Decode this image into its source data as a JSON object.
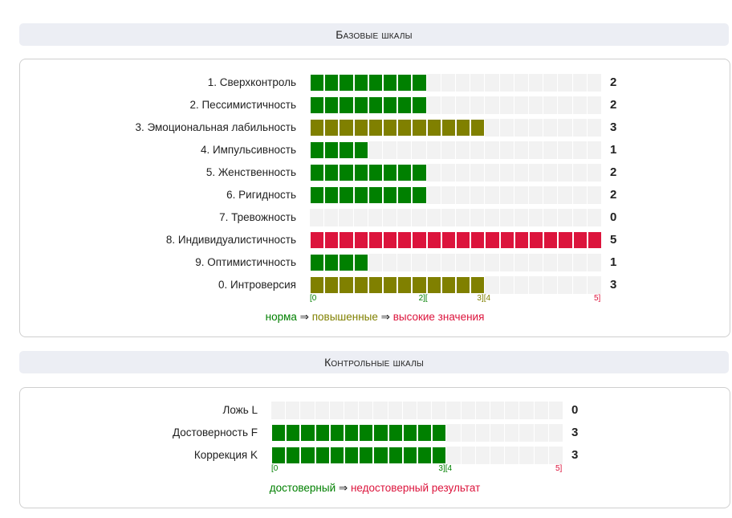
{
  "colors": {
    "norm": "#008000",
    "elevated": "#808000",
    "high": "#dc143c",
    "empty": "#f2f2f2"
  },
  "base": {
    "title": "Базовые шкалы",
    "max_value": 5,
    "cells_per_unit": 4,
    "rows": [
      {
        "label": "1. Сверхконтроль",
        "value": 2,
        "value_text": "2",
        "level": "norm"
      },
      {
        "label": "2. Пессимистичность",
        "value": 2,
        "value_text": "2",
        "level": "norm"
      },
      {
        "label": "3. Эмоциональная лабильность",
        "value": 3,
        "value_text": "3",
        "level": "elevated"
      },
      {
        "label": "4. Импульсивность",
        "value": 1,
        "value_text": "1",
        "level": "norm"
      },
      {
        "label": "5. Женственность",
        "value": 2,
        "value_text": "2",
        "level": "norm"
      },
      {
        "label": "6. Ригидность",
        "value": 2,
        "value_text": "2",
        "level": "norm"
      },
      {
        "label": "7. Тревожность",
        "value": 0,
        "value_text": "0",
        "level": "norm"
      },
      {
        "label": "8. Индивидуалистичность",
        "value": 5,
        "value_text": "5",
        "level": "high"
      },
      {
        "label": "9. Оптимистичность",
        "value": 1,
        "value_text": "1",
        "level": "norm"
      },
      {
        "label": "0. Интроверсия",
        "value": 3,
        "value_text": "3",
        "level": "elevated"
      }
    ],
    "ticks": [
      {
        "text": "[0",
        "at": 0,
        "level": "norm"
      },
      {
        "text": "2][",
        "at": 2,
        "level": "norm"
      },
      {
        "text": "3][4",
        "at": 3,
        "level": "elevated"
      },
      {
        "text": "5]",
        "at": 5,
        "level": "high"
      }
    ],
    "legend": {
      "norm": "норма",
      "arrow1": " ⇒ ",
      "elevated": "повышенные",
      "arrow2": " ⇒ ",
      "high": "высокие значения"
    }
  },
  "control": {
    "title": "Контрольные шкалы",
    "max_value": 5,
    "cells_per_unit": 4,
    "rows": [
      {
        "label": "Ложь L",
        "value": 0,
        "value_text": "0",
        "level": "norm"
      },
      {
        "label": "Достоверность F",
        "value": 3,
        "value_text": "3",
        "level": "norm"
      },
      {
        "label": "Коррекция K",
        "value": 3,
        "value_text": "3",
        "level": "norm"
      }
    ],
    "ticks": [
      {
        "text": "[0",
        "at": 0,
        "level": "norm"
      },
      {
        "text": "3][4",
        "at": 3,
        "level": "norm"
      },
      {
        "text": "5]",
        "at": 5,
        "level": "high"
      }
    ],
    "legend": {
      "norm": "достоверный",
      "arrow": " ⇒ ",
      "high": "недостоверный результат"
    }
  },
  "chart_data": [
    {
      "type": "bar",
      "title": "Базовые шкалы",
      "categories": [
        "1. Сверхконтроль",
        "2. Пессимистичность",
        "3. Эмоциональная лабильность",
        "4. Импульсивность",
        "5. Женственность",
        "6. Ригидность",
        "7. Тревожность",
        "8. Индивидуалистичность",
        "9. Оптимистичность",
        "0. Интроверсия"
      ],
      "values": [
        2,
        2,
        3,
        1,
        2,
        2,
        0,
        5,
        1,
        3
      ],
      "xlim": [
        0,
        5
      ],
      "orientation": "horizontal"
    },
    {
      "type": "bar",
      "title": "Контрольные шкалы",
      "categories": [
        "Ложь L",
        "Достоверность F",
        "Коррекция K"
      ],
      "values": [
        0,
        3,
        3
      ],
      "xlim": [
        0,
        5
      ],
      "orientation": "horizontal"
    }
  ]
}
